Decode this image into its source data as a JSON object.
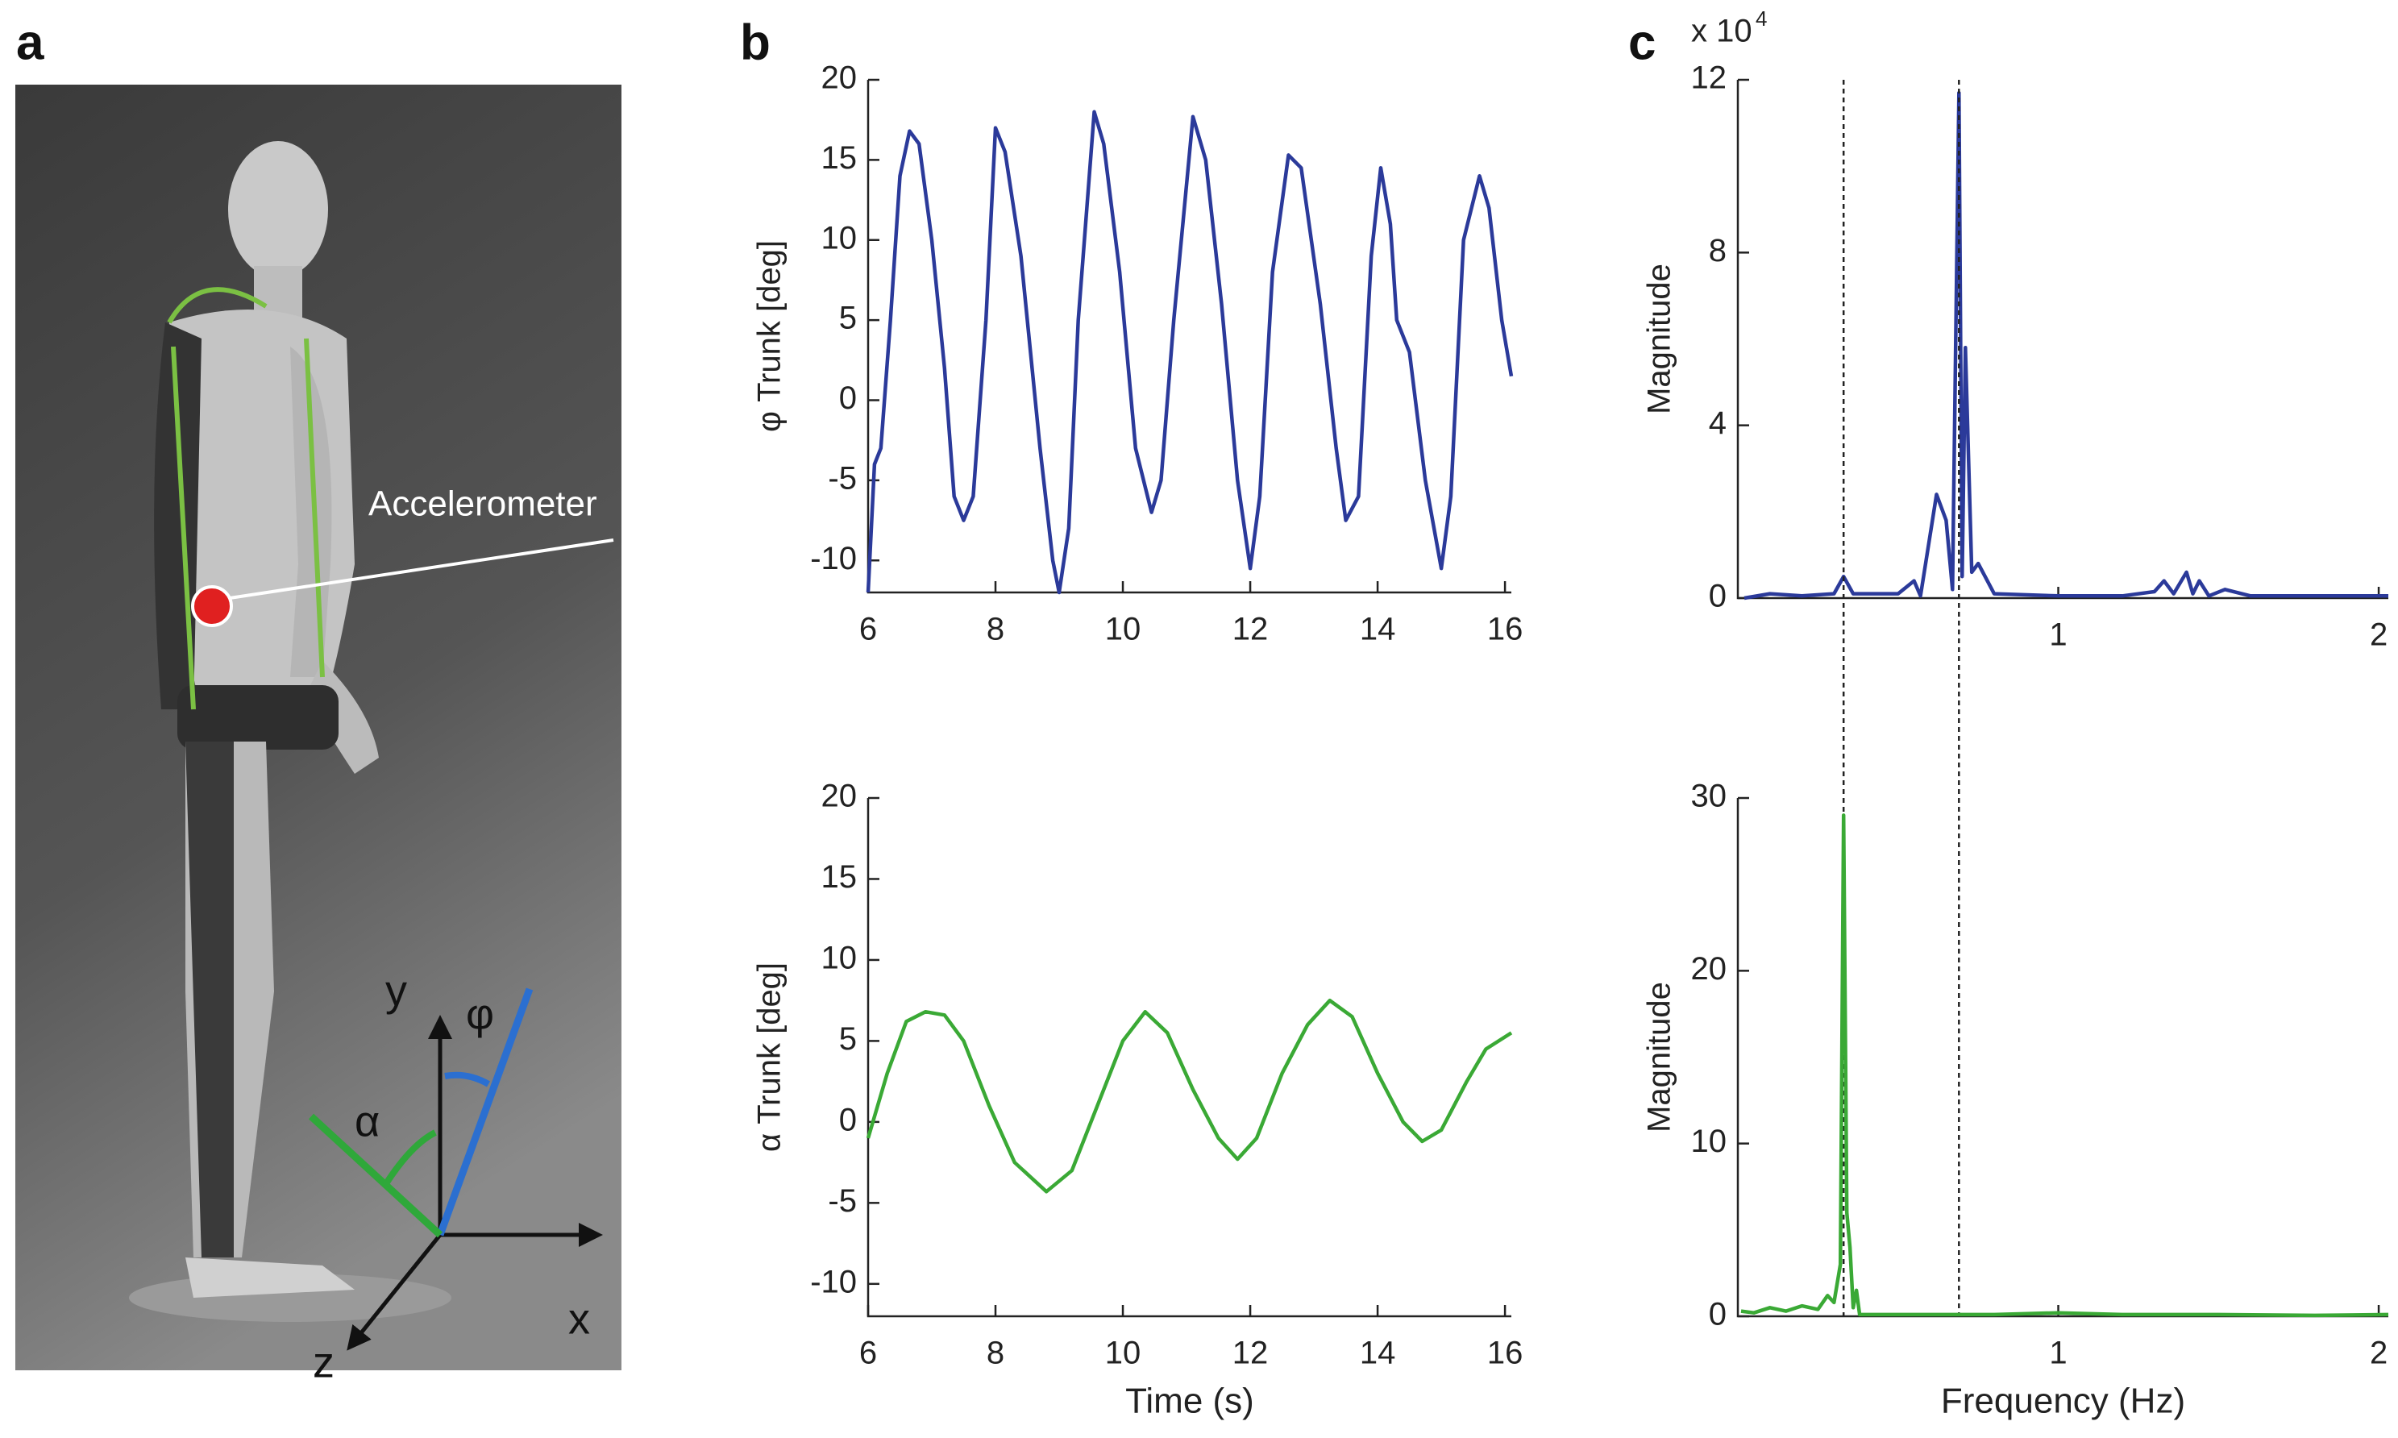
{
  "panel_labels": [
    "a",
    "b",
    "c"
  ],
  "photo": {
    "annotation": "Accelerometer",
    "axis_labels": {
      "x": "x",
      "y": "y",
      "z": "z"
    },
    "angles": {
      "alpha": "α",
      "phi": "φ"
    }
  },
  "chart_data": [
    {
      "type": "line",
      "ylabel": "φ Trunk [deg]",
      "x": [
        6.0,
        6.1,
        6.2,
        6.35,
        6.5,
        6.65,
        6.8,
        7.0,
        7.2,
        7.35,
        7.5,
        7.65,
        7.85,
        8.0,
        8.15,
        8.4,
        8.7,
        8.9,
        9.0,
        9.15,
        9.3,
        9.55,
        9.7,
        9.95,
        10.2,
        10.45,
        10.6,
        10.8,
        11.1,
        11.3,
        11.55,
        11.8,
        12.0,
        12.15,
        12.35,
        12.6,
        12.8,
        13.1,
        13.35,
        13.5,
        13.7,
        13.9,
        14.05,
        14.2,
        14.3,
        14.5,
        14.75,
        15.0,
        15.15,
        15.35,
        15.6,
        15.75,
        15.95,
        16.1
      ],
      "series": [
        {
          "color": "#2b3a9a",
          "values": [
            -12,
            -4,
            -3,
            5,
            14,
            16.8,
            16,
            10,
            2,
            -6,
            -7.5,
            -6,
            5,
            17,
            15.5,
            9,
            -3,
            -10,
            -12,
            -8,
            5,
            18,
            16,
            8,
            -3,
            -7,
            -5,
            5,
            17.7,
            15,
            6,
            -5,
            -10.5,
            -6,
            8,
            15.3,
            14.5,
            6,
            -3,
            -7.5,
            -6,
            9,
            14.5,
            11,
            5,
            3,
            -5,
            -10.5,
            -6,
            10,
            14,
            12,
            5,
            1.5
          ]
        }
      ],
      "xlim": [
        6,
        16.1
      ],
      "ylim": [
        -12,
        20
      ],
      "xticks": [
        6,
        8,
        10,
        12,
        14,
        16
      ],
      "yticks": [
        -10,
        -5,
        0,
        5,
        10,
        15,
        20
      ]
    },
    {
      "type": "line",
      "ylabel": "α   Trunk [deg]",
      "xlabel": "Time (s)",
      "x": [
        6.0,
        6.3,
        6.6,
        6.9,
        7.2,
        7.5,
        7.9,
        8.3,
        8.8,
        9.2,
        9.6,
        10.0,
        10.35,
        10.7,
        11.1,
        11.5,
        11.8,
        12.1,
        12.5,
        12.9,
        13.25,
        13.6,
        14.0,
        14.4,
        14.7,
        15.0,
        15.4,
        15.7,
        16.1
      ],
      "series": [
        {
          "color": "#3aa935",
          "values": [
            -1,
            3,
            6.2,
            6.8,
            6.6,
            5,
            1,
            -2.5,
            -4.3,
            -3,
            1,
            5,
            6.8,
            5.5,
            2,
            -1,
            -2.3,
            -1,
            3,
            6,
            7.5,
            6.5,
            3,
            0,
            -1.2,
            -0.5,
            2.5,
            4.5,
            5.5
          ]
        }
      ],
      "xlim": [
        6,
        16.1
      ],
      "ylim": [
        -12,
        20
      ],
      "xticks": [
        6,
        8,
        10,
        12,
        14,
        16
      ],
      "yticks": [
        -10,
        -5,
        0,
        5,
        10,
        15,
        20
      ]
    },
    {
      "type": "line",
      "ylabel": "Magnitude",
      "multiplier": "x 10",
      "multiplier_exponent": "4",
      "x": [
        0.02,
        0.1,
        0.2,
        0.3,
        0.33,
        0.36,
        0.5,
        0.55,
        0.57,
        0.62,
        0.65,
        0.67,
        0.69,
        0.7,
        0.71,
        0.73,
        0.75,
        0.8,
        1.0,
        1.2,
        1.3,
        1.33,
        1.36,
        1.4,
        1.42,
        1.44,
        1.47,
        1.52,
        1.6,
        1.8,
        2.03
      ],
      "series": [
        {
          "color": "#2b3a9a",
          "values": [
            0,
            0.1,
            0.05,
            0.1,
            0.5,
            0.1,
            0.1,
            0.4,
            0.05,
            2.4,
            1.8,
            0.2,
            11.7,
            0.5,
            5.8,
            0.6,
            0.8,
            0.1,
            0.05,
            0.05,
            0.15,
            0.4,
            0.1,
            0.6,
            0.1,
            0.4,
            0.05,
            0.2,
            0.05,
            0.05,
            0.05
          ]
        }
      ],
      "xlim": [
        0,
        2.03
      ],
      "ylim": [
        0,
        12
      ],
      "xticks": [
        1,
        2
      ],
      "yticks": [
        0,
        4,
        8,
        12
      ],
      "vlines": [
        0.33,
        0.69
      ]
    },
    {
      "type": "line",
      "ylabel": "Magnitude",
      "xlabel": "Frequency (Hz)",
      "x": [
        0.01,
        0.05,
        0.1,
        0.15,
        0.2,
        0.25,
        0.28,
        0.3,
        0.32,
        0.33,
        0.34,
        0.35,
        0.36,
        0.37,
        0.38,
        0.5,
        0.8,
        1.0,
        1.2,
        1.5,
        1.8,
        2.03
      ],
      "series": [
        {
          "color": "#3aa935",
          "values": [
            0.3,
            0.2,
            0.5,
            0.3,
            0.6,
            0.4,
            1.2,
            0.8,
            3,
            29,
            6,
            4,
            0.5,
            1.5,
            0.1,
            0.1,
            0.1,
            0.2,
            0.1,
            0.1,
            0.05,
            0.1
          ]
        }
      ],
      "xlim": [
        0,
        2.03
      ],
      "ylim": [
        0,
        30
      ],
      "xticks": [
        1,
        2
      ],
      "yticks": [
        0,
        10,
        20,
        30
      ]
    }
  ]
}
